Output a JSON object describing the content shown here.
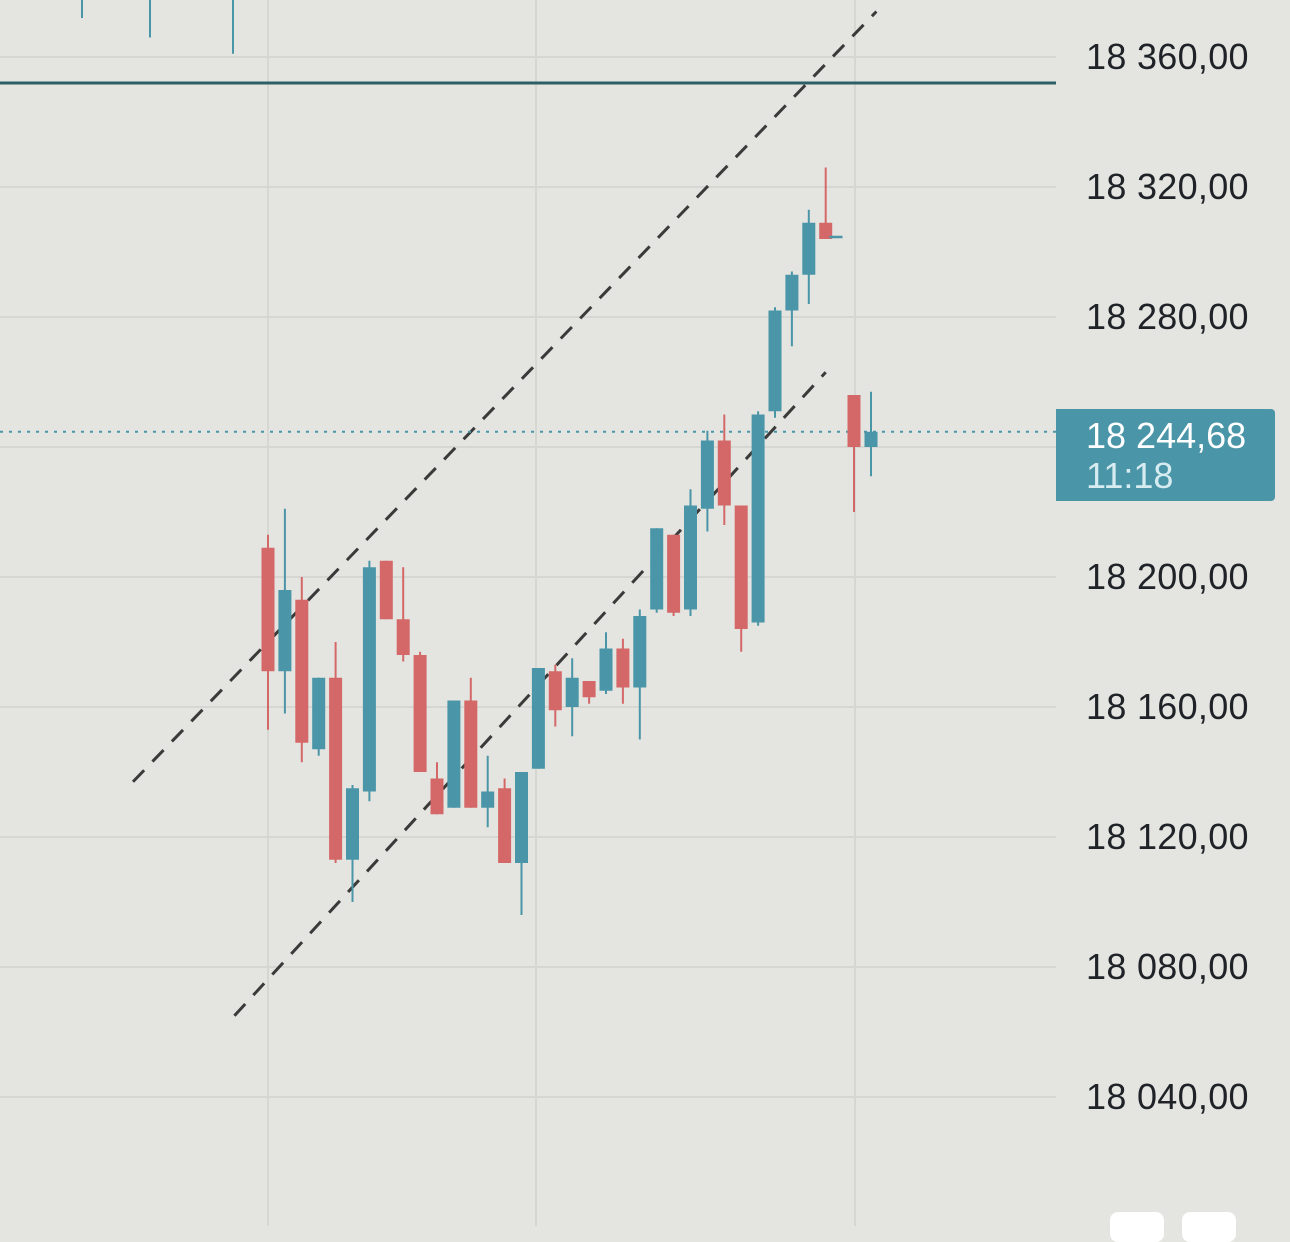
{
  "chart_data": {
    "type": "candlestick",
    "y_axis_labels": [
      "18 360,00",
      "18 320,00",
      "18 280,00",
      "18 244,68",
      "18 200,00",
      "18 160,00",
      "18 120,00",
      "18 080,00",
      "18 040,00"
    ],
    "current_price": "18 244,68",
    "current_time": "11:18",
    "ylim": [
      18000,
      18375
    ],
    "horizontal_level": 18352,
    "candles": [
      {
        "o": 18383,
        "h": 18383,
        "l": 18372,
        "c": 18383
      },
      {
        "o": 18383,
        "h": 18383,
        "l": 18366,
        "c": 18383
      },
      {
        "o": 18381,
        "h": 18381,
        "l": 18361,
        "c": 18381
      },
      {
        "o": 18209,
        "h": 18213,
        "l": 18153,
        "c": 18171
      },
      {
        "o": 18171,
        "h": 18221,
        "l": 18158,
        "c": 18196
      },
      {
        "o": 18193,
        "h": 18200,
        "l": 18143,
        "c": 18149
      },
      {
        "o": 18147,
        "h": 18169,
        "l": 18145,
        "c": 18169
      },
      {
        "o": 18169,
        "h": 18180,
        "l": 18112,
        "c": 18113
      },
      {
        "o": 18113,
        "h": 18136,
        "l": 18100,
        "c": 18135
      },
      {
        "o": 18134,
        "h": 18205,
        "l": 18131,
        "c": 18203
      },
      {
        "o": 18205,
        "h": 18205,
        "l": 18187,
        "c": 18187
      },
      {
        "o": 18187,
        "h": 18203,
        "l": 18174,
        "c": 18176
      },
      {
        "o": 18176,
        "h": 18177,
        "l": 18140,
        "c": 18140
      },
      {
        "o": 18138,
        "h": 18143,
        "l": 18127,
        "c": 18127
      },
      {
        "o": 18129,
        "h": 18162,
        "l": 18129,
        "c": 18162
      },
      {
        "o": 18162,
        "h": 18169,
        "l": 18129,
        "c": 18129
      },
      {
        "o": 18129,
        "h": 18145,
        "l": 18123,
        "c": 18134
      },
      {
        "o": 18135,
        "h": 18138,
        "l": 18112,
        "c": 18112
      },
      {
        "o": 18112,
        "h": 18140,
        "l": 18096,
        "c": 18140
      },
      {
        "o": 18141,
        "h": 18172,
        "l": 18141,
        "c": 18172
      },
      {
        "o": 18171,
        "h": 18173,
        "l": 18154,
        "c": 18159
      },
      {
        "o": 18160,
        "h": 18175,
        "l": 18151,
        "c": 18169
      },
      {
        "o": 18168,
        "h": 18168,
        "l": 18161,
        "c": 18163
      },
      {
        "o": 18165,
        "h": 18183,
        "l": 18164,
        "c": 18178
      },
      {
        "o": 18178,
        "h": 18181,
        "l": 18161,
        "c": 18166
      },
      {
        "o": 18166,
        "h": 18190,
        "l": 18150,
        "c": 18188
      },
      {
        "o": 18190,
        "h": 18215,
        "l": 18189,
        "c": 18215
      },
      {
        "o": 18213,
        "h": 18213,
        "l": 18188,
        "c": 18189
      },
      {
        "o": 18190,
        "h": 18227,
        "l": 18188,
        "c": 18222
      },
      {
        "o": 18221,
        "h": 18245,
        "l": 18214,
        "c": 18242
      },
      {
        "o": 18242,
        "h": 18250,
        "l": 18216,
        "c": 18222
      },
      {
        "o": 18222,
        "h": 18222,
        "l": 18177,
        "c": 18184
      },
      {
        "o": 18186,
        "h": 18251,
        "l": 18185,
        "c": 18250
      },
      {
        "o": 18251,
        "h": 18283,
        "l": 18249,
        "c": 18282
      },
      {
        "o": 18282,
        "h": 18294,
        "l": 18271,
        "c": 18293
      },
      {
        "o": 18293,
        "h": 18313,
        "l": 18284,
        "c": 18309
      },
      {
        "o": 18309,
        "h": 18326,
        "l": 18304,
        "c": 18304
      },
      {
        "o": 18305,
        "h": 18305,
        "l": 18305,
        "c": 18305
      },
      {
        "o": 18256,
        "h": 18256,
        "l": 18220,
        "c": 18240
      },
      {
        "o": 18240,
        "h": 18257,
        "l": 18231,
        "c": 18244.68
      }
    ],
    "trend_lines": [
      {
        "from": [
          0,
          18137
        ],
        "to": [
          36,
          18374
        ]
      },
      {
        "from": [
          6,
          18065
        ],
        "to": [
          33,
          18263
        ]
      }
    ],
    "colors": {
      "up": "#4a96a8",
      "down": "#d46868",
      "level": "#2c5f66",
      "trend": "#3a3a3a",
      "grid": "#d6d6d2",
      "price": "#4a96a8"
    }
  }
}
